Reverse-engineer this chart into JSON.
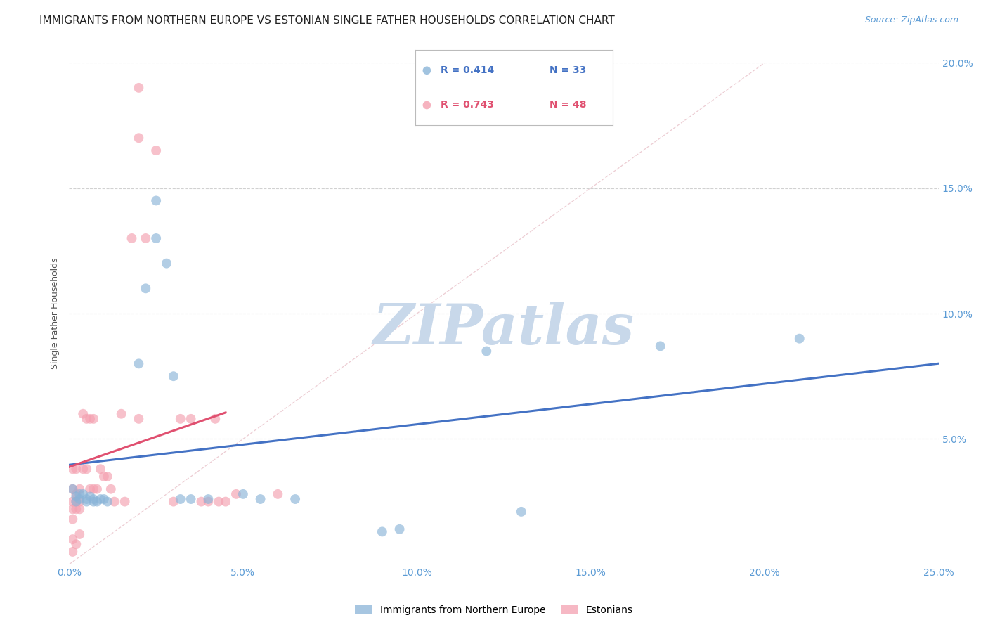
{
  "title": "IMMIGRANTS FROM NORTHERN EUROPE VS ESTONIAN SINGLE FATHER HOUSEHOLDS CORRELATION CHART",
  "source_text": "Source: ZipAtlas.com",
  "ylabel": "Single Father Households",
  "watermark": "ZIPatlas",
  "xlim": [
    0.0,
    0.25
  ],
  "ylim": [
    0.0,
    0.2
  ],
  "xticks": [
    0.0,
    0.05,
    0.1,
    0.15,
    0.2,
    0.25
  ],
  "yticks_right": [
    0.05,
    0.1,
    0.15,
    0.2
  ],
  "xticklabels": [
    "0.0%",
    "5.0%",
    "10.0%",
    "15.0%",
    "20.0%",
    "25.0%"
  ],
  "yticklabels_right": [
    "5.0%",
    "10.0%",
    "15.0%",
    "20.0%"
  ],
  "legend_blue_r": "R = 0.414",
  "legend_blue_n": "N = 33",
  "legend_pink_r": "R = 0.743",
  "legend_pink_n": "N = 48",
  "blue_color": "#8ab4d8",
  "pink_color": "#f4a0b0",
  "blue_line_color": "#4472c4",
  "pink_line_color": "#e05070",
  "blue_scatter": [
    [
      0.001,
      0.03
    ],
    [
      0.002,
      0.027
    ],
    [
      0.002,
      0.025
    ],
    [
      0.003,
      0.028
    ],
    [
      0.003,
      0.026
    ],
    [
      0.004,
      0.028
    ],
    [
      0.005,
      0.026
    ],
    [
      0.005,
      0.025
    ],
    [
      0.006,
      0.027
    ],
    [
      0.007,
      0.026
    ],
    [
      0.007,
      0.025
    ],
    [
      0.008,
      0.025
    ],
    [
      0.009,
      0.026
    ],
    [
      0.01,
      0.026
    ],
    [
      0.011,
      0.025
    ],
    [
      0.02,
      0.08
    ],
    [
      0.022,
      0.11
    ],
    [
      0.025,
      0.145
    ],
    [
      0.025,
      0.13
    ],
    [
      0.028,
      0.12
    ],
    [
      0.03,
      0.075
    ],
    [
      0.032,
      0.026
    ],
    [
      0.035,
      0.026
    ],
    [
      0.04,
      0.026
    ],
    [
      0.05,
      0.028
    ],
    [
      0.055,
      0.026
    ],
    [
      0.065,
      0.026
    ],
    [
      0.09,
      0.013
    ],
    [
      0.095,
      0.014
    ],
    [
      0.12,
      0.085
    ],
    [
      0.17,
      0.087
    ],
    [
      0.13,
      0.021
    ],
    [
      0.21,
      0.09
    ]
  ],
  "pink_scatter": [
    [
      0.001,
      0.018
    ],
    [
      0.001,
      0.022
    ],
    [
      0.001,
      0.025
    ],
    [
      0.001,
      0.03
    ],
    [
      0.002,
      0.025
    ],
    [
      0.002,
      0.028
    ],
    [
      0.002,
      0.022
    ],
    [
      0.003,
      0.03
    ],
    [
      0.003,
      0.025
    ],
    [
      0.003,
      0.022
    ],
    [
      0.004,
      0.038
    ],
    [
      0.004,
      0.06
    ],
    [
      0.005,
      0.058
    ],
    [
      0.005,
      0.038
    ],
    [
      0.006,
      0.03
    ],
    [
      0.006,
      0.058
    ],
    [
      0.007,
      0.058
    ],
    [
      0.007,
      0.03
    ],
    [
      0.008,
      0.03
    ],
    [
      0.009,
      0.038
    ],
    [
      0.01,
      0.035
    ],
    [
      0.011,
      0.035
    ],
    [
      0.012,
      0.03
    ],
    [
      0.013,
      0.025
    ],
    [
      0.015,
      0.06
    ],
    [
      0.016,
      0.025
    ],
    [
      0.018,
      0.13
    ],
    [
      0.02,
      0.17
    ],
    [
      0.02,
      0.058
    ],
    [
      0.022,
      0.13
    ],
    [
      0.03,
      0.025
    ],
    [
      0.032,
      0.058
    ],
    [
      0.035,
      0.058
    ],
    [
      0.038,
      0.025
    ],
    [
      0.04,
      0.025
    ],
    [
      0.042,
      0.058
    ],
    [
      0.043,
      0.025
    ],
    [
      0.045,
      0.025
    ],
    [
      0.048,
      0.028
    ],
    [
      0.06,
      0.028
    ],
    [
      0.001,
      0.005
    ],
    [
      0.001,
      0.01
    ],
    [
      0.002,
      0.008
    ],
    [
      0.002,
      0.038
    ],
    [
      0.001,
      0.038
    ],
    [
      0.003,
      0.012
    ],
    [
      0.02,
      0.19
    ],
    [
      0.025,
      0.165
    ]
  ],
  "title_fontsize": 11,
  "ylabel_fontsize": 9,
  "tick_fontsize": 10,
  "tick_color": "#5b9bd5",
  "background_color": "#ffffff",
  "grid_color": "#cccccc",
  "watermark_color": "#c8d8ea",
  "marker_size": 100
}
